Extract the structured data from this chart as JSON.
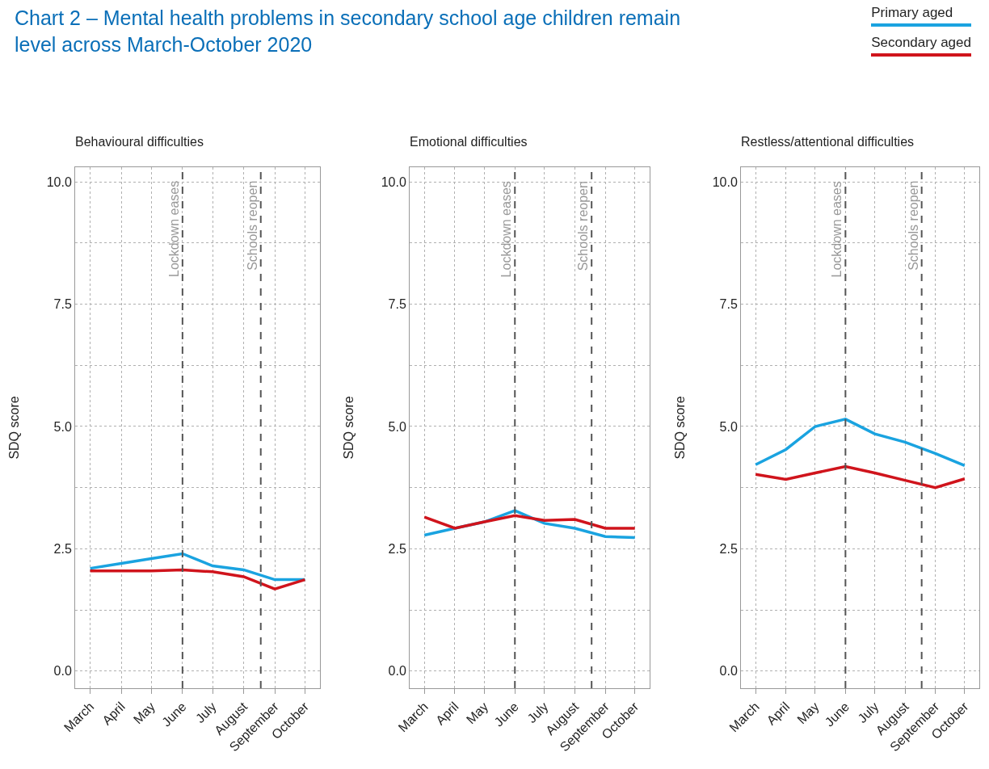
{
  "chart_data": [
    {
      "type": "line",
      "title": "Behavioural difficulties",
      "ylabel": "SDQ score",
      "annotations": [
        "Chart 2 – Mental health problems in secondary school age children remain level across March-October 2020"
      ],
      "x": [
        "2020-03-15",
        "2020-04-15",
        "2020-05-15",
        "2020-06-15",
        "2020-07-15",
        "2020-08-15",
        "2020-09-15",
        "2020-10-15"
      ],
      "xlim": [
        "2020-02-29",
        "2020-10-30"
      ],
      "xticks": [
        {
          "value": "2020-03-15",
          "label": "March"
        },
        {
          "value": "2020-04-15",
          "label": "April"
        },
        {
          "value": "2020-05-15",
          "label": "May"
        },
        {
          "value": "2020-06-15",
          "label": "June"
        },
        {
          "value": "2020-07-15",
          "label": "July"
        },
        {
          "value": "2020-08-15",
          "label": "August"
        },
        {
          "value": "2020-09-15",
          "label": "September"
        },
        {
          "value": "2020-10-15",
          "label": "October"
        }
      ],
      "ylim": [
        -0.35,
        10.3
      ],
      "yticks": [
        {
          "value": 0,
          "label": "0.0"
        },
        {
          "value": 1.25,
          "label": null
        },
        {
          "value": 2.5,
          "label": "2.5"
        },
        {
          "value": 3.75,
          "label": null
        },
        {
          "value": 5,
          "label": "5.0"
        },
        {
          "value": 6.25,
          "label": null
        },
        {
          "value": 7.5,
          "label": "7.5"
        },
        {
          "value": 8.75,
          "label": null
        },
        {
          "value": 10,
          "label": "10.0"
        }
      ],
      "grid": true,
      "legend": "top right",
      "line_style": "solid",
      "ref_lines": [
        {
          "axis": "x",
          "value": "2020-06-15",
          "label": "Lockdown eases",
          "color": "#555555",
          "line_style": "dashed"
        },
        {
          "axis": "x",
          "value": "2020-09-01",
          "label": "Schools reopen",
          "color": "#555555",
          "line_style": "dashed"
        }
      ],
      "series": [
        {
          "name": "Primary aged",
          "color": "#1aa3e0",
          "values": [
            2.1,
            2.2,
            2.3,
            2.4,
            2.15,
            2.07,
            1.87,
            1.87
          ]
        },
        {
          "name": "Secondary aged",
          "color": "#d0141c",
          "values": [
            2.05,
            2.05,
            2.05,
            2.07,
            2.03,
            1.93,
            1.68,
            1.87
          ]
        }
      ]
    },
    {
      "type": "line",
      "title": "Emotional difficulties",
      "ylabel": "SDQ score",
      "x": [
        "2020-03-15",
        "2020-04-15",
        "2020-05-15",
        "2020-06-15",
        "2020-07-15",
        "2020-08-15",
        "2020-09-15",
        "2020-10-15"
      ],
      "xlim": [
        "2020-02-29",
        "2020-10-30"
      ],
      "xticks": [
        {
          "value": "2020-03-15",
          "label": "March"
        },
        {
          "value": "2020-04-15",
          "label": "April"
        },
        {
          "value": "2020-05-15",
          "label": "May"
        },
        {
          "value": "2020-06-15",
          "label": "June"
        },
        {
          "value": "2020-07-15",
          "label": "July"
        },
        {
          "value": "2020-08-15",
          "label": "August"
        },
        {
          "value": "2020-09-15",
          "label": "September"
        },
        {
          "value": "2020-10-15",
          "label": "October"
        }
      ],
      "ylim": [
        -0.35,
        10.3
      ],
      "yticks": [
        {
          "value": 0,
          "label": "0.0"
        },
        {
          "value": 1.25,
          "label": null
        },
        {
          "value": 2.5,
          "label": "2.5"
        },
        {
          "value": 3.75,
          "label": null
        },
        {
          "value": 5,
          "label": "5.0"
        },
        {
          "value": 6.25,
          "label": null
        },
        {
          "value": 7.5,
          "label": "7.5"
        },
        {
          "value": 8.75,
          "label": null
        },
        {
          "value": 10,
          "label": "10.0"
        }
      ],
      "grid": true,
      "line_style": "solid",
      "ref_lines": [
        {
          "axis": "x",
          "value": "2020-06-15",
          "label": "Lockdown eases",
          "color": "#555555",
          "line_style": "dashed"
        },
        {
          "axis": "x",
          "value": "2020-09-01",
          "label": "Schools reopen",
          "color": "#555555",
          "line_style": "dashed"
        }
      ],
      "series": [
        {
          "color": "#1aa3e0",
          "values": [
            2.78,
            2.92,
            3.05,
            3.28,
            3.02,
            2.92,
            2.75,
            2.73
          ]
        },
        {
          "color": "#d0141c",
          "values": [
            3.15,
            2.92,
            3.05,
            3.18,
            3.08,
            3.1,
            2.92,
            2.92
          ]
        }
      ]
    },
    {
      "type": "line",
      "title": "Restless/attentional difficulties",
      "ylabel": "SDQ score",
      "x": [
        "2020-03-15",
        "2020-04-15",
        "2020-05-15",
        "2020-06-15",
        "2020-07-15",
        "2020-08-15",
        "2020-09-15",
        "2020-10-15"
      ],
      "xlim": [
        "2020-02-29",
        "2020-10-30"
      ],
      "xticks": [
        {
          "value": "2020-03-15",
          "label": "March"
        },
        {
          "value": "2020-04-15",
          "label": "April"
        },
        {
          "value": "2020-05-15",
          "label": "May"
        },
        {
          "value": "2020-06-15",
          "label": "June"
        },
        {
          "value": "2020-07-15",
          "label": "July"
        },
        {
          "value": "2020-08-15",
          "label": "August"
        },
        {
          "value": "2020-09-15",
          "label": "September"
        },
        {
          "value": "2020-10-15",
          "label": "October"
        }
      ],
      "ylim": [
        -0.35,
        10.3
      ],
      "yticks": [
        {
          "value": 0,
          "label": "0.0"
        },
        {
          "value": 1.25,
          "label": null
        },
        {
          "value": 2.5,
          "label": "2.5"
        },
        {
          "value": 3.75,
          "label": null
        },
        {
          "value": 5,
          "label": "5.0"
        },
        {
          "value": 6.25,
          "label": null
        },
        {
          "value": 7.5,
          "label": "7.5"
        },
        {
          "value": 8.75,
          "label": null
        },
        {
          "value": 10,
          "label": "10.0"
        }
      ],
      "grid": true,
      "line_style": "solid",
      "ref_lines": [
        {
          "axis": "x",
          "value": "2020-06-15",
          "label": "Lockdown eases",
          "color": "#555555",
          "line_style": "dashed"
        },
        {
          "axis": "x",
          "value": "2020-09-01",
          "label": "Schools reopen",
          "color": "#555555",
          "line_style": "dashed"
        }
      ],
      "series": [
        {
          "color": "#1aa3e0",
          "values": [
            4.22,
            4.53,
            5.0,
            5.15,
            4.85,
            4.68,
            4.45,
            4.2
          ]
        },
        {
          "color": "#d0141c",
          "values": [
            4.02,
            3.92,
            4.05,
            4.18,
            4.05,
            3.9,
            3.75,
            3.93
          ]
        }
      ]
    }
  ]
}
